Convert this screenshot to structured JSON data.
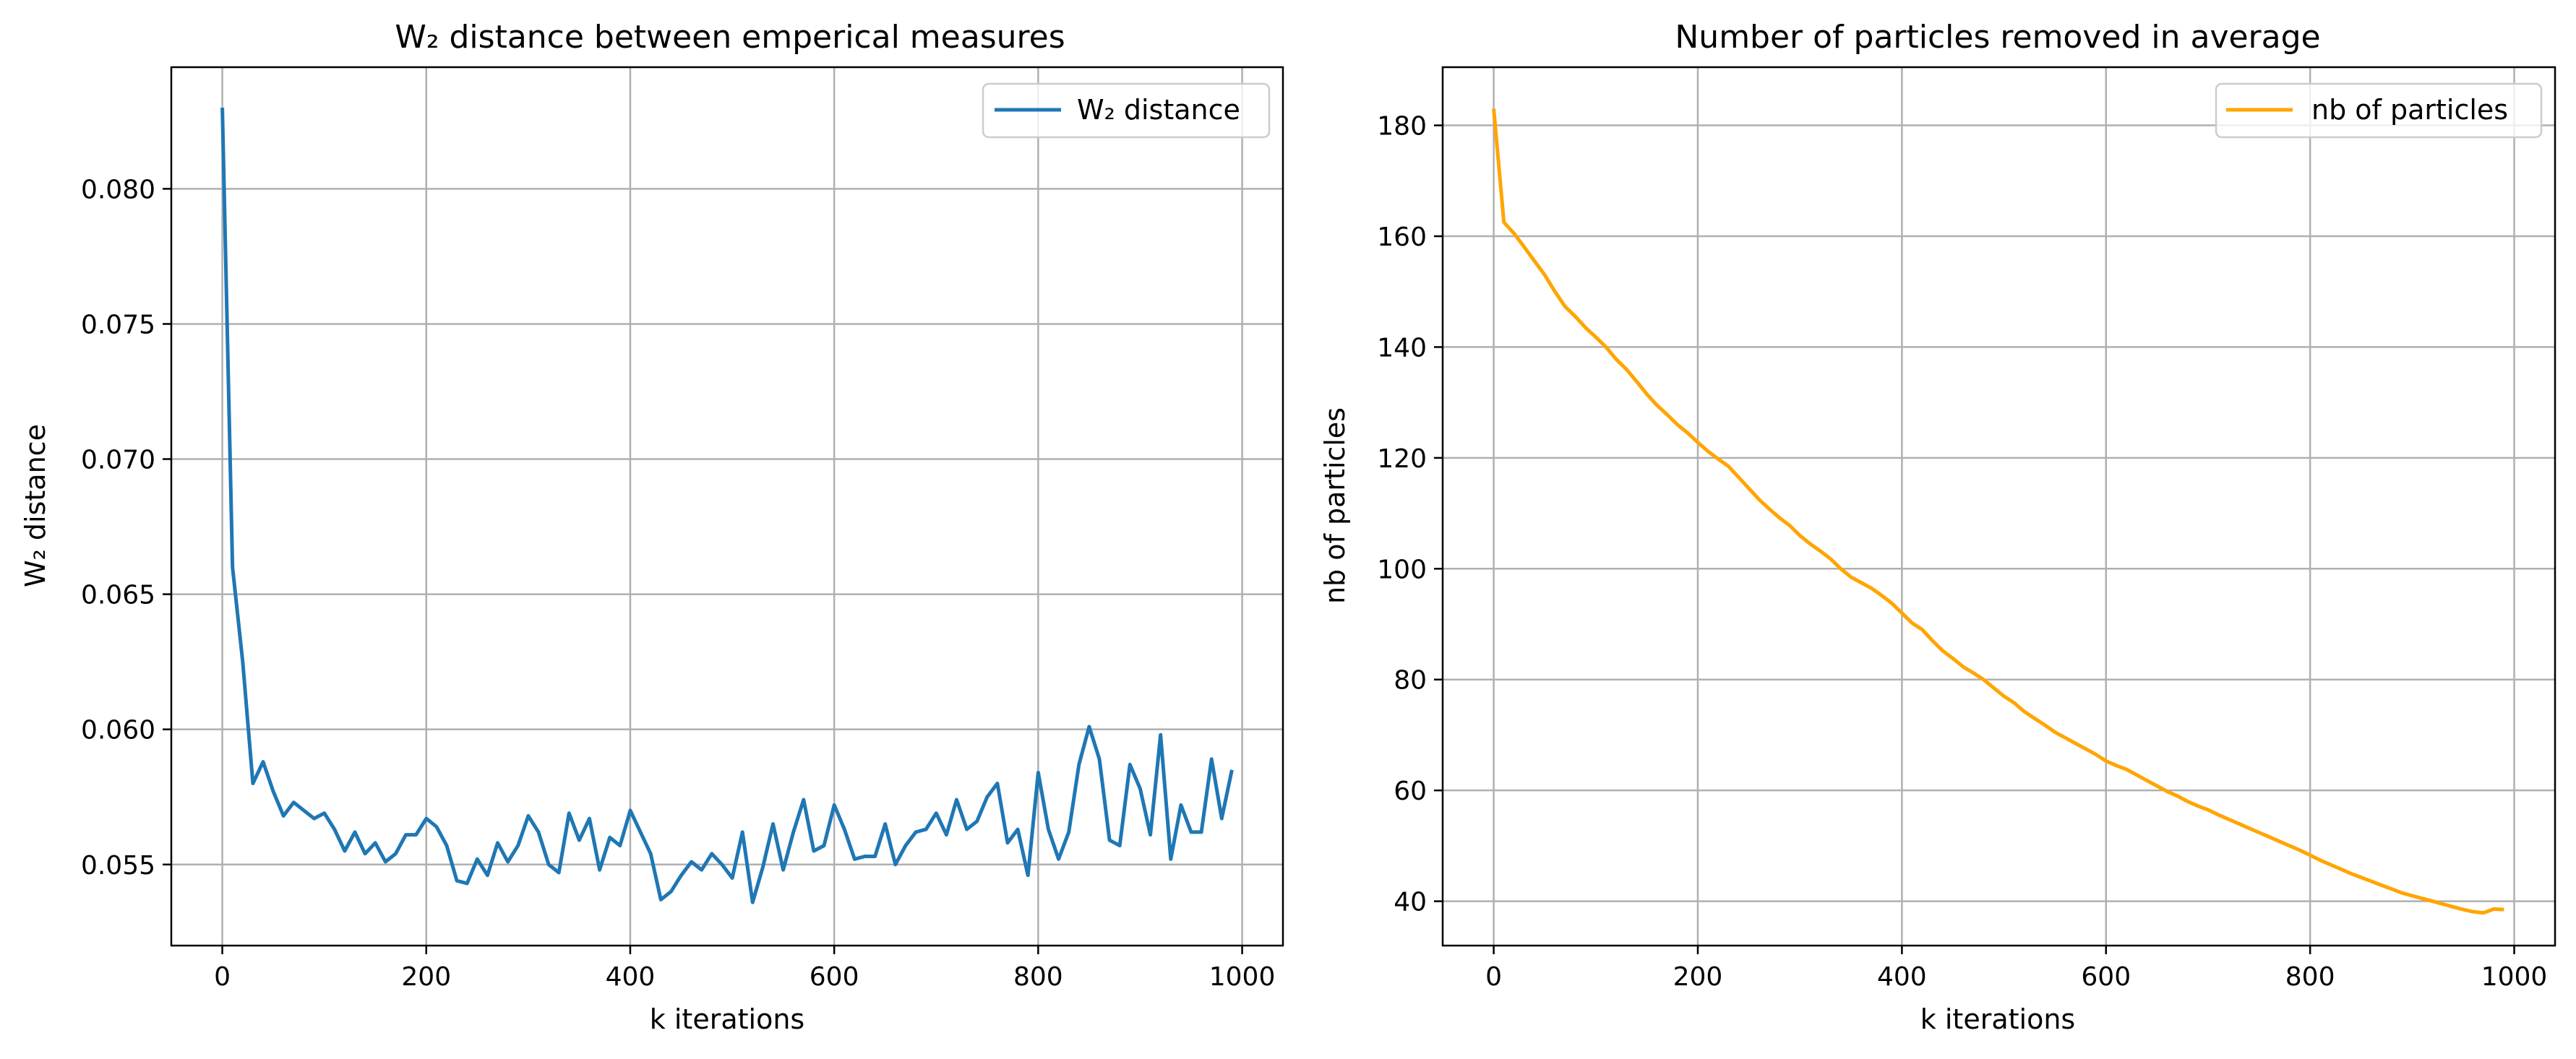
{
  "chart_data": [
    {
      "type": "line",
      "title": "W₂ distance between emperical measures",
      "xlabel": "k iterations",
      "ylabel": "W₂ distance",
      "xlim": [
        -50,
        1040
      ],
      "ylim": [
        0.052,
        0.0845
      ],
      "xticks": [
        0,
        200,
        400,
        600,
        800,
        1000
      ],
      "xtick_labels": [
        "0",
        "200",
        "400",
        "600",
        "800",
        "1000"
      ],
      "yticks": [
        0.055,
        0.06,
        0.065,
        0.07,
        0.075,
        0.08
      ],
      "ytick_labels": [
        "0.055",
        "0.060",
        "0.065",
        "0.070",
        "0.075",
        "0.080"
      ],
      "grid": true,
      "legend_position": "upper right",
      "series": [
        {
          "name": "W₂ distance",
          "color": "#1f77b4",
          "x": [
            0,
            10,
            20,
            30,
            40,
            50,
            60,
            70,
            80,
            90,
            100,
            110,
            120,
            130,
            140,
            150,
            160,
            170,
            180,
            190,
            200,
            210,
            220,
            230,
            240,
            250,
            260,
            270,
            280,
            290,
            300,
            310,
            320,
            330,
            340,
            350,
            360,
            370,
            380,
            390,
            400,
            410,
            420,
            430,
            440,
            450,
            460,
            470,
            480,
            490,
            500,
            510,
            520,
            530,
            540,
            550,
            560,
            570,
            580,
            590,
            600,
            610,
            620,
            630,
            640,
            650,
            660,
            670,
            680,
            690,
            700,
            710,
            720,
            730,
            740,
            750,
            760,
            770,
            780,
            790,
            800,
            810,
            820,
            830,
            840,
            850,
            860,
            870,
            880,
            890,
            900,
            910,
            920,
            930,
            940,
            950,
            960,
            970,
            980,
            990
          ],
          "y": [
            0.083,
            0.066,
            0.0625,
            0.058,
            0.0588,
            0.0577,
            0.0568,
            0.0573,
            0.057,
            0.0567,
            0.0569,
            0.0563,
            0.0555,
            0.0562,
            0.0554,
            0.0558,
            0.0551,
            0.0554,
            0.0561,
            0.0561,
            0.0567,
            0.0564,
            0.0557,
            0.0544,
            0.0543,
            0.0552,
            0.0546,
            0.0558,
            0.0551,
            0.0557,
            0.0568,
            0.0562,
            0.055,
            0.0547,
            0.0569,
            0.0559,
            0.0567,
            0.0548,
            0.056,
            0.0557,
            0.057,
            0.0562,
            0.0554,
            0.0537,
            0.054,
            0.0546,
            0.0551,
            0.0548,
            0.0554,
            0.055,
            0.0545,
            0.0562,
            0.0536,
            0.0549,
            0.0565,
            0.0548,
            0.0562,
            0.0574,
            0.0555,
            0.0557,
            0.0572,
            0.0563,
            0.0552,
            0.0553,
            0.0553,
            0.0565,
            0.055,
            0.0557,
            0.0562,
            0.0563,
            0.0569,
            0.0561,
            0.0574,
            0.0563,
            0.0566,
            0.0575,
            0.058,
            0.0558,
            0.0563,
            0.0546,
            0.0584,
            0.0563,
            0.0552,
            0.0562,
            0.0587,
            0.0601,
            0.0589,
            0.0559,
            0.0557,
            0.0587,
            0.0578,
            0.0561,
            0.0598,
            0.0552,
            0.0572,
            0.0562,
            0.0562,
            0.0589,
            0.0567,
            0.0585
          ]
        }
      ]
    },
    {
      "type": "line",
      "title": "Number of particles removed in average",
      "xlabel": "k iterations",
      "ylabel": "nb of particles",
      "xlim": [
        -50,
        1040
      ],
      "ylim": [
        32,
        190.5
      ],
      "xticks": [
        0,
        200,
        400,
        600,
        800,
        1000
      ],
      "xtick_labels": [
        "0",
        "200",
        "400",
        "600",
        "800",
        "1000"
      ],
      "yticks": [
        40,
        60,
        80,
        100,
        120,
        140,
        160,
        180
      ],
      "ytick_labels": [
        "40",
        "60",
        "80",
        "100",
        "120",
        "140",
        "160",
        "180"
      ],
      "grid": true,
      "legend_position": "upper right",
      "series": [
        {
          "name": "nb of particles",
          "color": "#ffa500",
          "x": [
            0,
            10,
            20,
            30,
            40,
            50,
            60,
            70,
            80,
            90,
            100,
            110,
            120,
            130,
            140,
            150,
            160,
            170,
            180,
            190,
            200,
            210,
            220,
            230,
            240,
            250,
            260,
            270,
            280,
            290,
            300,
            310,
            320,
            330,
            340,
            350,
            360,
            370,
            380,
            390,
            400,
            410,
            420,
            430,
            440,
            450,
            460,
            470,
            480,
            490,
            500,
            510,
            520,
            530,
            540,
            550,
            560,
            570,
            580,
            590,
            600,
            610,
            620,
            630,
            640,
            650,
            660,
            670,
            680,
            690,
            700,
            710,
            720,
            730,
            740,
            750,
            760,
            770,
            780,
            790,
            800,
            810,
            820,
            830,
            840,
            850,
            860,
            870,
            880,
            890,
            900,
            910,
            920,
            930,
            940,
            950,
            960,
            970,
            980,
            990
          ],
          "y": [
            183.0,
            162.5,
            160.5,
            158.0,
            155.5,
            153.0,
            150.0,
            147.3,
            145.5,
            143.5,
            141.8,
            140.0,
            137.8,
            136.0,
            133.8,
            131.5,
            129.5,
            127.8,
            126.0,
            124.5,
            122.8,
            121.2,
            119.8,
            118.5,
            116.5,
            114.5,
            112.5,
            110.8,
            109.2,
            107.8,
            106.0,
            104.5,
            103.2,
            101.8,
            100.0,
            98.5,
            97.5,
            96.5,
            95.2,
            93.8,
            92.0,
            90.2,
            89.0,
            87.0,
            85.2,
            83.8,
            82.3,
            81.2,
            80.0,
            78.5,
            77.0,
            75.8,
            74.2,
            73.0,
            71.8,
            70.5,
            69.5,
            68.5,
            67.5,
            66.5,
            65.3,
            64.5,
            63.8,
            62.8,
            61.8,
            60.8,
            59.8,
            59.0,
            58.0,
            57.2,
            56.5,
            55.6,
            54.8,
            54.0,
            53.2,
            52.4,
            51.6,
            50.8,
            50.0,
            49.2,
            48.3,
            47.4,
            46.6,
            45.8,
            45.0,
            44.3,
            43.6,
            42.9,
            42.2,
            41.5,
            41.0,
            40.5,
            40.0,
            39.5,
            39.0,
            38.5,
            38.1,
            37.9,
            38.6,
            38.5
          ]
        }
      ]
    }
  ]
}
